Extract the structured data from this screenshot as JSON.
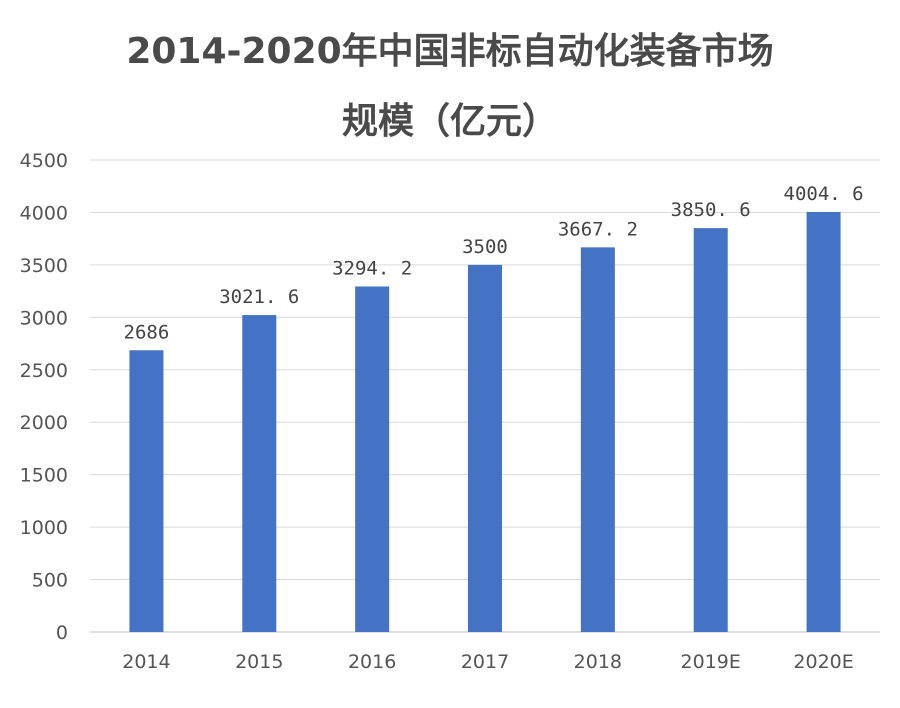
{
  "chart_data": {
    "type": "bar",
    "title_line1": "2014-2020年中国非标自动化装备市场",
    "title_line2": "规模（亿元）",
    "categories": [
      "2014",
      "2015",
      "2016",
      "2017",
      "2018",
      "2019E",
      "2020E"
    ],
    "values": [
      2686,
      3021.6,
      3294.2,
      3500,
      3667.2,
      3850.6,
      4004.6
    ],
    "data_labels": [
      "2686",
      "3021. 6",
      "3294. 2",
      "3500",
      "3667. 2",
      "3850. 6",
      "4004. 6"
    ],
    "ylim": [
      0,
      4500
    ],
    "yticks": [
      0,
      500,
      1000,
      1500,
      2000,
      2500,
      3000,
      3500,
      4000,
      4500
    ],
    "bar_color": "#4472C4",
    "grid": true,
    "legend": "none",
    "xlabel": "",
    "ylabel": ""
  }
}
